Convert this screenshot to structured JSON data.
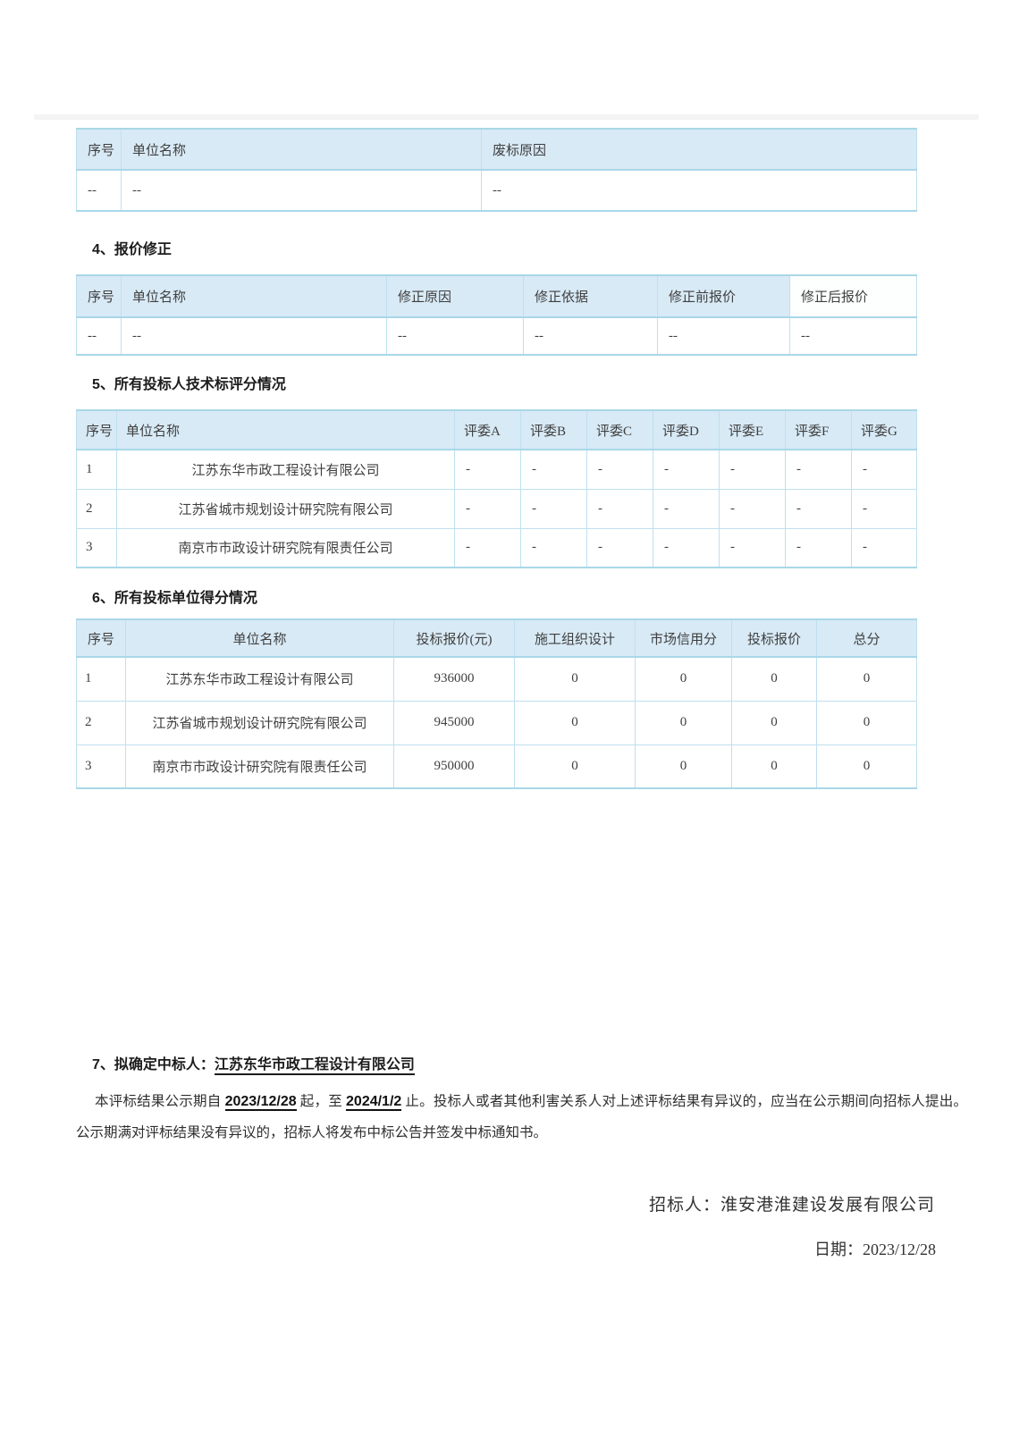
{
  "sections": {
    "s4": "4、报价修正",
    "s5": "5、所有投标人技术标评分情况",
    "s6": "6、所有投标单位得分情况",
    "s7_prefix": "7、拟确定中标人：",
    "s7_winner": "江苏东华市政工程设计有限公司"
  },
  "tables": {
    "invalid_bids": {
      "headers": [
        "序号",
        "单位名称",
        "废标原因"
      ],
      "rows": [
        [
          "--",
          "--",
          "--"
        ]
      ]
    },
    "price_corrections": {
      "headers": [
        "序号",
        "单位名称",
        "修正原因",
        "修正依据",
        "修正前报价",
        "修正后报价"
      ],
      "rows": [
        [
          "--",
          "--",
          "--",
          "--",
          "--",
          "--"
        ]
      ]
    },
    "technical_scores": {
      "headers": [
        "序号",
        "单位名称",
        "评委A",
        "评委B",
        "评委C",
        "评委D",
        "评委E",
        "评委F",
        "评委G"
      ],
      "rows": [
        [
          "1",
          "江苏东华市政工程设计有限公司",
          "-",
          "-",
          "-",
          "-",
          "-",
          "-",
          "-"
        ],
        [
          "2",
          "江苏省城市规划设计研究院有限公司",
          "-",
          "-",
          "-",
          "-",
          "-",
          "-",
          "-"
        ],
        [
          "3",
          "南京市市政设计研究院有限责任公司",
          "-",
          "-",
          "-",
          "-",
          "-",
          "-",
          "-"
        ]
      ]
    },
    "total_scores": {
      "headers": [
        "序号",
        "单位名称",
        "投标报价(元)",
        "施工组织设计",
        "市场信用分",
        "投标报价",
        "总分"
      ],
      "rows": [
        [
          "1",
          "江苏东华市政工程设计有限公司",
          "936000",
          "0",
          "0",
          "0",
          "0"
        ],
        [
          "2",
          "江苏省城市规划设计研究院有限公司",
          "945000",
          "0",
          "0",
          "0",
          "0"
        ],
        [
          "3",
          "南京市市政设计研究院有限责任公司",
          "950000",
          "0",
          "0",
          "0",
          "0"
        ]
      ]
    }
  },
  "notice": {
    "part1": "本评标结果公示期自 ",
    "date_start": "2023/12/28",
    "part2": " 起，至 ",
    "date_end": "2024/1/2",
    "part3": " 止。投标人或者其他利害关系人对上述评标结果有异议的，应当在公示期间向招标人提出。公示期满对评标结果没有异议的，招标人将发布中标公告并签发中标通知书。"
  },
  "signature": {
    "tenderer": "招标人：淮安港淮建设发展有限公司",
    "date": "日期：2023/12/28"
  },
  "colors": {
    "header_bg": "#d8eaf6",
    "table_border": "#bee0ef",
    "table_accent_border": "#a9d7e8",
    "text": "#3a3a3a"
  }
}
